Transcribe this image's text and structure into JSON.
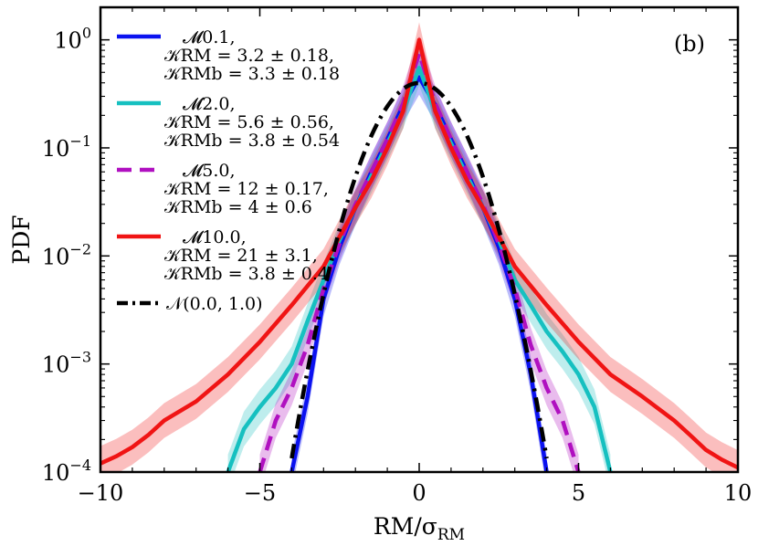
{
  "chart_data": {
    "type": "line",
    "panel_label": "(b)",
    "xlabel": "RM/σ_RM",
    "ylabel": "PDF",
    "xlim": [
      -10,
      10
    ],
    "ylim": [
      0.0001,
      2
    ],
    "yscale": "log",
    "x_ticks": [
      -10,
      -5,
      0,
      5,
      10
    ],
    "x_tick_labels": [
      "−10",
      "−5",
      "0",
      "5",
      "10"
    ],
    "y_ticks": [
      0.0001,
      0.001,
      0.01,
      0.1,
      1
    ],
    "y_tick_labels": [
      {
        "base": "10",
        "exp": "−4"
      },
      {
        "base": "10",
        "exp": "−3"
      },
      {
        "base": "10",
        "exp": "−2"
      },
      {
        "base": "10",
        "exp": "−1"
      },
      {
        "base": "10",
        "exp": "0"
      }
    ],
    "legend_position": "top-left",
    "series": [
      {
        "name": "𝓜0.1",
        "kurtosis_label": "𝒦RM = 3.2 ± 0.18,",
        "kurtosis_b_label": "𝒦RMb = 3.3 ± 0.18",
        "color": "#0b12f0",
        "style": "solid",
        "band": true,
        "x": [
          -4,
          -3.5,
          -3,
          -2.5,
          -2,
          -1.5,
          -1,
          -0.5,
          0,
          0.5,
          1,
          1.5,
          2,
          2.5,
          3,
          3.5,
          4
        ],
        "y": [
          0.0001,
          0.0005,
          0.004,
          0.012,
          0.028,
          0.06,
          0.12,
          0.25,
          0.45,
          0.25,
          0.12,
          0.06,
          0.028,
          0.012,
          0.004,
          0.0008,
          0.0001
        ]
      },
      {
        "name": "𝓜2.0",
        "kurtosis_label": "𝒦RM = 5.6 ± 0.56,",
        "kurtosis_b_label": "𝒦RMb = 3.8 ± 0.54",
        "color": "#16c0c0",
        "style": "solid",
        "band": true,
        "x": [
          -6,
          -5.5,
          -5,
          -4.5,
          -4,
          -3.5,
          -3,
          -2.5,
          -2,
          -1.5,
          -1,
          -0.5,
          0,
          0.5,
          1,
          1.5,
          2,
          2.5,
          3,
          3.5,
          4,
          4.5,
          5,
          5.5,
          6
        ],
        "y": [
          0.0001,
          0.00025,
          0.0004,
          0.0006,
          0.001,
          0.0025,
          0.006,
          0.014,
          0.028,
          0.055,
          0.11,
          0.22,
          0.55,
          0.22,
          0.11,
          0.055,
          0.028,
          0.014,
          0.006,
          0.0035,
          0.002,
          0.0013,
          0.0008,
          0.0004,
          0.0001
        ]
      },
      {
        "name": "𝓜5.0",
        "kurtosis_label": "𝒦RM = 12 ± 0.17,",
        "kurtosis_b_label": "𝒦RMb = 4 ± 0.6",
        "color": "#b010c0",
        "style": "dashed",
        "band": true,
        "x": [
          -5,
          -4.5,
          -4,
          -3.5,
          -3,
          -2.5,
          -2,
          -1.5,
          -1,
          -0.5,
          0,
          0.5,
          1,
          1.5,
          2,
          2.5,
          3,
          3.5,
          4,
          4.5,
          5
        ],
        "y": [
          0.0001,
          0.0003,
          0.0006,
          0.0015,
          0.005,
          0.013,
          0.03,
          0.06,
          0.12,
          0.26,
          0.75,
          0.26,
          0.12,
          0.06,
          0.03,
          0.013,
          0.005,
          0.0015,
          0.0006,
          0.0003,
          0.0001
        ]
      },
      {
        "name": "𝓜10.0",
        "kurtosis_label": "𝒦RM = 21 ± 3.1,",
        "kurtosis_b_label": "𝒦RMb = 3.8 ± 0.4",
        "color": "#f01414",
        "style": "solid",
        "band": true,
        "x": [
          -10,
          -9.5,
          -9,
          -8.5,
          -8,
          -7,
          -6,
          -5,
          -4,
          -3,
          -2.5,
          -2,
          -1.5,
          -1,
          -0.5,
          0,
          0.5,
          1,
          1.5,
          2,
          2.5,
          3,
          4,
          5,
          6,
          7,
          8,
          8.5,
          9,
          9.5,
          10
        ],
        "y": [
          0.00012,
          0.00014,
          0.00017,
          0.00022,
          0.0003,
          0.00045,
          0.0008,
          0.0016,
          0.0035,
          0.008,
          0.015,
          0.028,
          0.05,
          0.1,
          0.22,
          1.0,
          0.22,
          0.1,
          0.05,
          0.028,
          0.015,
          0.008,
          0.0035,
          0.0016,
          0.0008,
          0.0005,
          0.0003,
          0.00022,
          0.00016,
          0.00013,
          0.00011
        ]
      },
      {
        "name": "𝒩(0.0, 1.0)",
        "color": "#000000",
        "style": "dashdot",
        "band": false,
        "normal": {
          "mean": 0.0,
          "sigma": 1.0,
          "xrange": [
            -4,
            4
          ]
        }
      }
    ]
  }
}
